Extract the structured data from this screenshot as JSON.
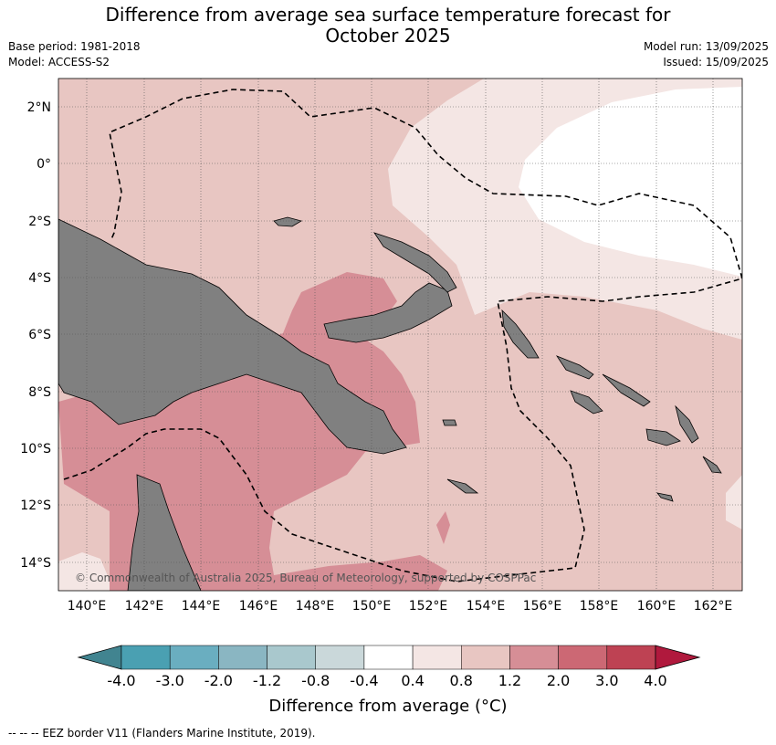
{
  "header": {
    "title_line1": "Difference from average sea surface temperature forecast for",
    "title_line2": "October 2025",
    "base_period": "Base period: 1981-2018",
    "model": "Model: ACCESS-S2",
    "model_run": "Model run: 13/09/2025",
    "issued": "Issued: 15/09/2025"
  },
  "map": {
    "lon_ticks": [
      "140°E",
      "142°E",
      "144°E",
      "146°E",
      "148°E",
      "150°E",
      "152°E",
      "154°E",
      "156°E",
      "158°E",
      "160°E",
      "162°E"
    ],
    "lat_ticks": [
      "2°N",
      "0°",
      "2°S",
      "4°S",
      "6°S",
      "8°S",
      "10°S",
      "12°S",
      "14°S"
    ],
    "copyright": "© Commonwealth of Australia 2025, Bureau of Meteorology, supported by COSPPac",
    "land_color": "#808080",
    "anomaly_fill": {
      "0.4_0.8": "#f4e6e4",
      "0.8_1.2": "#e8c6c2",
      "1.2_2.0": "#d68e96",
      "below_0.4": "#ffffff"
    }
  },
  "colorbar": {
    "tick_labels": [
      "-4.0",
      "-3.0",
      "-2.0",
      "-1.2",
      "-0.8",
      "-0.4",
      "0.4",
      "0.8",
      "1.2",
      "2.0",
      "3.0",
      "4.0"
    ],
    "colors": [
      "#418490",
      "#4aa0b2",
      "#6aaec0",
      "#8ab6c2",
      "#a9c8cd",
      "#cad8da",
      "#ffffff",
      "#f4e6e4",
      "#e8c6c2",
      "#d68e96",
      "#cc6874",
      "#be4253",
      "#b0193d"
    ],
    "label": "Difference from average (°C)"
  },
  "footer": {
    "legend": "--  --  -- EEZ border V11 (Flanders Marine Institute, 2019)."
  }
}
